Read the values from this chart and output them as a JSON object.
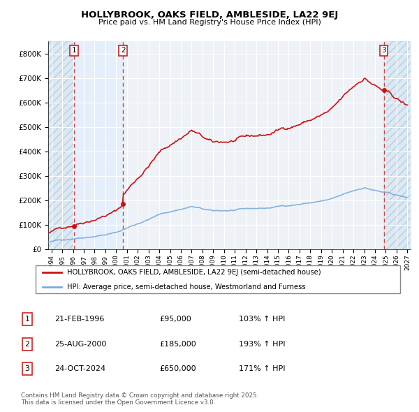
{
  "title": "HOLLYBROOK, OAKS FIELD, AMBLESIDE, LA22 9EJ",
  "subtitle": "Price paid vs. HM Land Registry's House Price Index (HPI)",
  "ylim": [
    0,
    850000
  ],
  "yticks": [
    0,
    100000,
    200000,
    300000,
    400000,
    500000,
    600000,
    700000,
    800000
  ],
  "ytick_labels": [
    "£0",
    "£100K",
    "£200K",
    "£300K",
    "£400K",
    "£500K",
    "£600K",
    "£700K",
    "£800K"
  ],
  "xlim_start": 1993.7,
  "xlim_end": 2027.3,
  "xtick_years": [
    1994,
    1995,
    1996,
    1997,
    1998,
    1999,
    2000,
    2001,
    2002,
    2003,
    2004,
    2005,
    2006,
    2007,
    2008,
    2009,
    2010,
    2011,
    2012,
    2013,
    2014,
    2015,
    2016,
    2017,
    2018,
    2019,
    2020,
    2021,
    2022,
    2023,
    2024,
    2025,
    2026,
    2027
  ],
  "sale_dates_decimal": [
    1996.12,
    2000.65,
    2024.81
  ],
  "sale_prices": [
    95000,
    185000,
    650000
  ],
  "sale_labels": [
    "1",
    "2",
    "3"
  ],
  "red_line_color": "#cc1111",
  "blue_line_color": "#7aacda",
  "marker_color": "#cc1111",
  "dashed_line_color": "#cc4444",
  "background_plot": "#eef2f7",
  "hatch_bg_color": "#dce8f2",
  "grid_color": "#ffffff",
  "legend_line1": "HOLLYBROOK, OAKS FIELD, AMBLESIDE, LA22 9EJ (semi-detached house)",
  "legend_line2": "HPI: Average price, semi-detached house, Westmorland and Furness",
  "table_entries": [
    {
      "num": "1",
      "date": "21-FEB-1996",
      "price": "£95,000",
      "hpi": "103% ↑ HPI"
    },
    {
      "num": "2",
      "date": "25-AUG-2000",
      "price": "£185,000",
      "hpi": "193% ↑ HPI"
    },
    {
      "num": "3",
      "date": "24-OCT-2024",
      "price": "£650,000",
      "hpi": "171% ↑ HPI"
    }
  ],
  "footnote": "Contains HM Land Registry data © Crown copyright and database right 2025.\nThis data is licensed under the Open Government Licence v3.0."
}
